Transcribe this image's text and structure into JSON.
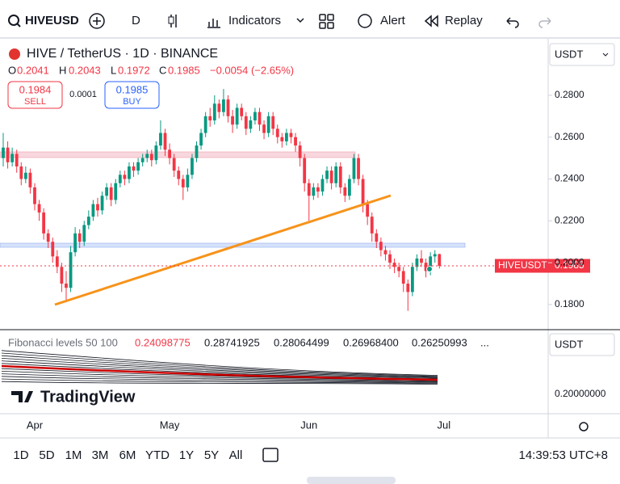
{
  "toolbar": {
    "symbol": "HIVEUSD",
    "interval": "D",
    "indicators": "Indicators",
    "alert": "Alert",
    "replay": "Replay"
  },
  "legend": {
    "title": "HIVE / TetherUS · 1D · BINANCE",
    "open_label": "O",
    "open": 0.2041,
    "high_label": "H",
    "high": 0.2043,
    "low_label": "L",
    "low": 0.1972,
    "close_label": "C",
    "close": 0.1985,
    "change": "−0.0054 (−2.65%)",
    "sell_price": 0.1984,
    "sell": "SELL",
    "spread": 0.0001,
    "buy_price": 0.1985,
    "buy": "BUY"
  },
  "currency": "USDT",
  "price_label": {
    "symbol": "HIVEUSDT",
    "price": 0.1985
  },
  "indicator": {
    "name": "Fibonacci levels 50 100",
    "levels": [
      "0.24098775",
      "0.28741925",
      "0.28064499",
      "0.26968400",
      "0.26250993",
      "..."
    ],
    "currency": "USDT",
    "scale_label": "0.20000000"
  },
  "watermark": "TradingView",
  "bottom_bar": {
    "ranges": [
      "1D",
      "5D",
      "1M",
      "3M",
      "6M",
      "YTD",
      "1Y",
      "5Y",
      "All"
    ],
    "clock": "14:39:53 UTC+8"
  },
  "chart_data": {
    "type": "candlestick",
    "up_color": "#089981",
    "down_color": "#f23645",
    "x_labels": [
      "Apr",
      "May",
      "Jun",
      "Jul"
    ],
    "ylim": [
      0.168,
      0.307
    ],
    "yticks": [
      {
        "value": 0.18,
        "label": "0.1800"
      },
      {
        "value": 0.2,
        "label": "0.2000"
      },
      {
        "value": 0.22,
        "label": "0.2200"
      },
      {
        "value": 0.24,
        "label": "0.2400"
      },
      {
        "value": 0.26,
        "label": "0.2600"
      },
      {
        "value": 0.28,
        "label": "0.2800"
      }
    ],
    "candles": [
      [
        0.25,
        0.262,
        0.246,
        0.255
      ],
      [
        0.255,
        0.258,
        0.245,
        0.248
      ],
      [
        0.248,
        0.255,
        0.246,
        0.252
      ],
      [
        0.252,
        0.254,
        0.243,
        0.246
      ],
      [
        0.246,
        0.248,
        0.237,
        0.24
      ],
      [
        0.24,
        0.246,
        0.238,
        0.243
      ],
      [
        0.243,
        0.245,
        0.233,
        0.236
      ],
      [
        0.236,
        0.238,
        0.225,
        0.228
      ],
      [
        0.228,
        0.23,
        0.22,
        0.224
      ],
      [
        0.224,
        0.226,
        0.211,
        0.214
      ],
      [
        0.214,
        0.216,
        0.207,
        0.21
      ],
      [
        0.21,
        0.212,
        0.2,
        0.203
      ],
      [
        0.203,
        0.206,
        0.195,
        0.198
      ],
      [
        0.198,
        0.2,
        0.186,
        0.19
      ],
      [
        0.19,
        0.196,
        0.182,
        0.188
      ],
      [
        0.188,
        0.208,
        0.186,
        0.205
      ],
      [
        0.205,
        0.217,
        0.203,
        0.214
      ],
      [
        0.214,
        0.216,
        0.207,
        0.21
      ],
      [
        0.21,
        0.22,
        0.208,
        0.218
      ],
      [
        0.218,
        0.225,
        0.216,
        0.222
      ],
      [
        0.222,
        0.23,
        0.22,
        0.228
      ],
      [
        0.228,
        0.231,
        0.222,
        0.225
      ],
      [
        0.225,
        0.234,
        0.223,
        0.232
      ],
      [
        0.232,
        0.238,
        0.23,
        0.236
      ],
      [
        0.236,
        0.238,
        0.227,
        0.23
      ],
      [
        0.23,
        0.24,
        0.228,
        0.238
      ],
      [
        0.238,
        0.244,
        0.236,
        0.242
      ],
      [
        0.242,
        0.244,
        0.237,
        0.24
      ],
      [
        0.24,
        0.248,
        0.238,
        0.246
      ],
      [
        0.246,
        0.248,
        0.241,
        0.244
      ],
      [
        0.244,
        0.25,
        0.242,
        0.248
      ],
      [
        0.248,
        0.252,
        0.246,
        0.25
      ],
      [
        0.25,
        0.254,
        0.248,
        0.252
      ],
      [
        0.252,
        0.254,
        0.246,
        0.249
      ],
      [
        0.249,
        0.258,
        0.247,
        0.256
      ],
      [
        0.256,
        0.268,
        0.254,
        0.262
      ],
      [
        0.262,
        0.264,
        0.251,
        0.254
      ],
      [
        0.254,
        0.257,
        0.247,
        0.25
      ],
      [
        0.25,
        0.252,
        0.241,
        0.244
      ],
      [
        0.244,
        0.246,
        0.237,
        0.24
      ],
      [
        0.24,
        0.242,
        0.23,
        0.236
      ],
      [
        0.236,
        0.245,
        0.234,
        0.242
      ],
      [
        0.242,
        0.252,
        0.24,
        0.25
      ],
      [
        0.25,
        0.258,
        0.248,
        0.256
      ],
      [
        0.256,
        0.264,
        0.254,
        0.262
      ],
      [
        0.262,
        0.272,
        0.26,
        0.27
      ],
      [
        0.27,
        0.274,
        0.265,
        0.268
      ],
      [
        0.268,
        0.28,
        0.266,
        0.276
      ],
      [
        0.276,
        0.278,
        0.269,
        0.272
      ],
      [
        0.272,
        0.283,
        0.27,
        0.278
      ],
      [
        0.278,
        0.28,
        0.267,
        0.27
      ],
      [
        0.27,
        0.273,
        0.262,
        0.266
      ],
      [
        0.266,
        0.276,
        0.264,
        0.274
      ],
      [
        0.274,
        0.276,
        0.268,
        0.27
      ],
      [
        0.27,
        0.272,
        0.261,
        0.264
      ],
      [
        0.264,
        0.27,
        0.262,
        0.268
      ],
      [
        0.268,
        0.274,
        0.266,
        0.272
      ],
      [
        0.272,
        0.274,
        0.263,
        0.266
      ],
      [
        0.266,
        0.268,
        0.259,
        0.262
      ],
      [
        0.262,
        0.272,
        0.26,
        0.27
      ],
      [
        0.27,
        0.272,
        0.261,
        0.264
      ],
      [
        0.264,
        0.266,
        0.257,
        0.26
      ],
      [
        0.26,
        0.262,
        0.255,
        0.258
      ],
      [
        0.258,
        0.264,
        0.256,
        0.262
      ],
      [
        0.262,
        0.264,
        0.257,
        0.26
      ],
      [
        0.26,
        0.262,
        0.253,
        0.256
      ],
      [
        0.256,
        0.258,
        0.246,
        0.25
      ],
      [
        0.25,
        0.252,
        0.234,
        0.238
      ],
      [
        0.238,
        0.24,
        0.22,
        0.232
      ],
      [
        0.232,
        0.238,
        0.23,
        0.236
      ],
      [
        0.236,
        0.238,
        0.231,
        0.234
      ],
      [
        0.234,
        0.242,
        0.232,
        0.24
      ],
      [
        0.24,
        0.246,
        0.238,
        0.244
      ],
      [
        0.244,
        0.246,
        0.235,
        0.238
      ],
      [
        0.238,
        0.248,
        0.236,
        0.246
      ],
      [
        0.246,
        0.248,
        0.233,
        0.236
      ],
      [
        0.236,
        0.238,
        0.229,
        0.232
      ],
      [
        0.232,
        0.242,
        0.23,
        0.24
      ],
      [
        0.24,
        0.252,
        0.238,
        0.25
      ],
      [
        0.25,
        0.252,
        0.237,
        0.24
      ],
      [
        0.24,
        0.242,
        0.224,
        0.228
      ],
      [
        0.228,
        0.23,
        0.218,
        0.222
      ],
      [
        0.222,
        0.224,
        0.21,
        0.214
      ],
      [
        0.214,
        0.216,
        0.207,
        0.21
      ],
      [
        0.21,
        0.212,
        0.203,
        0.206
      ],
      [
        0.206,
        0.208,
        0.201,
        0.204
      ],
      [
        0.204,
        0.206,
        0.197,
        0.2
      ],
      [
        0.2,
        0.202,
        0.195,
        0.198
      ],
      [
        0.198,
        0.2,
        0.193,
        0.196
      ],
      [
        0.196,
        0.198,
        0.186,
        0.19
      ],
      [
        0.19,
        0.192,
        0.177,
        0.186
      ],
      [
        0.186,
        0.2,
        0.184,
        0.198
      ],
      [
        0.198,
        0.204,
        0.196,
        0.202
      ],
      [
        0.202,
        0.206,
        0.198,
        0.2
      ],
      [
        0.2,
        0.202,
        0.193,
        0.196
      ],
      [
        0.196,
        0.205,
        0.194,
        0.203
      ],
      [
        0.203,
        0.206,
        0.2,
        0.2041
      ],
      [
        0.2041,
        0.2043,
        0.1972,
        0.1985
      ]
    ]
  }
}
